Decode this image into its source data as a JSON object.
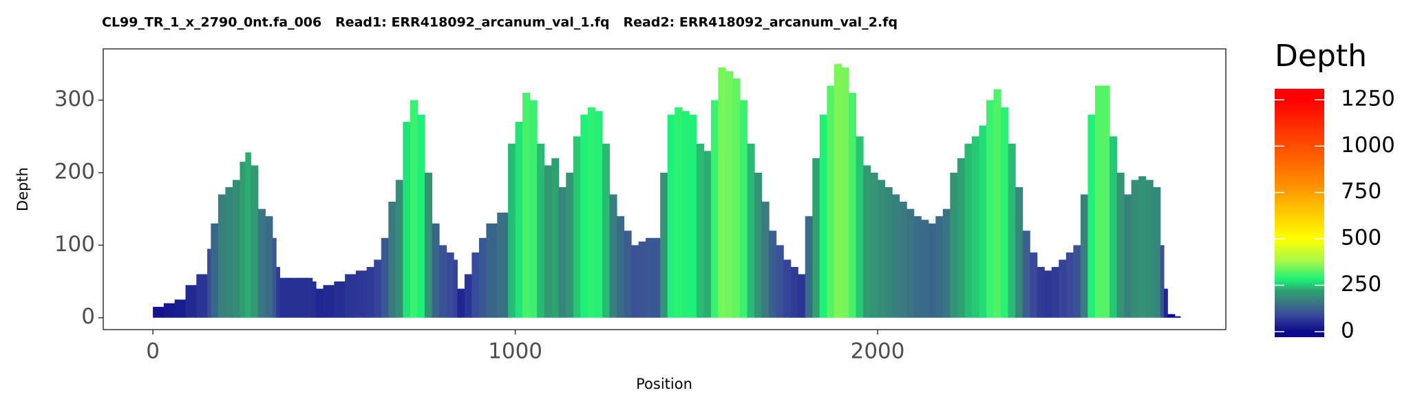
{
  "chart_data": {
    "type": "coverage",
    "title": "CL99_TR_1_x_2790_0nt.fa_006   Read1: ERR418092_arcanum_val_1.fq   Read2: ERR418092_arcanum_val_2.fq",
    "x_label": "Position",
    "y_label": "Depth",
    "legend_title": "Depth",
    "x": [
      0,
      30,
      60,
      90,
      120,
      150,
      160,
      180,
      200,
      220,
      240,
      255,
      270,
      290,
      310,
      330,
      340,
      350,
      380,
      420,
      440,
      450,
      470,
      500,
      530,
      560,
      590,
      610,
      630,
      650,
      670,
      690,
      710,
      730,
      750,
      770,
      790,
      810,
      830,
      840,
      860,
      880,
      900,
      920,
      950,
      980,
      1000,
      1020,
      1040,
      1060,
      1080,
      1100,
      1120,
      1140,
      1160,
      1180,
      1200,
      1220,
      1240,
      1260,
      1280,
      1300,
      1320,
      1340,
      1360,
      1380,
      1400,
      1420,
      1440,
      1460,
      1480,
      1500,
      1520,
      1540,
      1560,
      1580,
      1600,
      1620,
      1640,
      1660,
      1680,
      1700,
      1720,
      1740,
      1760,
      1780,
      1800,
      1820,
      1840,
      1860,
      1880,
      1900,
      1920,
      1940,
      1960,
      1980,
      2000,
      2020,
      2040,
      2060,
      2080,
      2100,
      2120,
      2140,
      2160,
      2180,
      2200,
      2220,
      2240,
      2260,
      2280,
      2300,
      2320,
      2340,
      2360,
      2380,
      2400,
      2420,
      2440,
      2460,
      2480,
      2500,
      2520,
      2540,
      2560,
      2580,
      2600,
      2620,
      2640,
      2660,
      2680,
      2700,
      2720,
      2740,
      2760,
      2780,
      2790,
      2800,
      2820
    ],
    "values": [
      15,
      20,
      25,
      45,
      60,
      95,
      130,
      170,
      180,
      190,
      215,
      228,
      210,
      150,
      140,
      110,
      70,
      55,
      55,
      55,
      50,
      40,
      45,
      50,
      60,
      65,
      70,
      80,
      110,
      160,
      190,
      270,
      300,
      280,
      200,
      130,
      100,
      90,
      80,
      40,
      60,
      90,
      110,
      130,
      145,
      240,
      270,
      310,
      300,
      240,
      210,
      220,
      180,
      200,
      250,
      280,
      290,
      285,
      240,
      170,
      140,
      120,
      100,
      105,
      110,
      110,
      200,
      280,
      290,
      285,
      280,
      240,
      230,
      300,
      345,
      340,
      330,
      300,
      240,
      200,
      160,
      120,
      100,
      80,
      70,
      60,
      140,
      220,
      280,
      320,
      350,
      345,
      310,
      250,
      210,
      200,
      190,
      180,
      170,
      160,
      150,
      140,
      135,
      130,
      140,
      150,
      200,
      220,
      240,
      250,
      265,
      300,
      315,
      290,
      240,
      180,
      120,
      90,
      70,
      65,
      70,
      80,
      90,
      100,
      170,
      280,
      320,
      320,
      250,
      200,
      170,
      190,
      195,
      190,
      180,
      100,
      40,
      5,
      2
    ],
    "xlim": [
      -137,
      2961
    ],
    "ylim": [
      -16.4,
      370.7
    ],
    "xticks": [
      0,
      1000,
      2000
    ],
    "yticks": [
      0,
      100,
      200,
      300
    ],
    "color_scale": [
      {
        "value": 0,
        "color": "#0a0a8a"
      },
      {
        "value": 90,
        "color": "#3a4a9a"
      },
      {
        "value": 160,
        "color": "#3a7a80"
      },
      {
        "value": 220,
        "color": "#2fa070"
      },
      {
        "value": 280,
        "color": "#1ef078"
      },
      {
        "value": 380,
        "color": "#a8f84a"
      },
      {
        "value": 500,
        "color": "#ffff00"
      },
      {
        "value": 800,
        "color": "#ff8c00"
      },
      {
        "value": 1250,
        "color": "#ff0000"
      }
    ],
    "colorbar_lim": [
      -30,
      1309
    ],
    "colorbar_ticks": [
      0,
      250,
      500,
      750,
      1000,
      1250
    ]
  }
}
